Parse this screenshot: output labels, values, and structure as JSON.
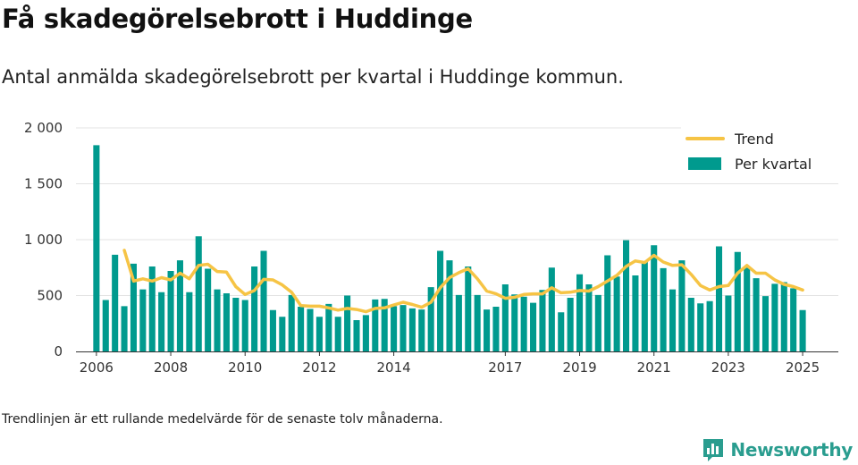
{
  "title": "Få skadegörelsebrott i Huddinge",
  "subtitle": "Antal anmälda skadegörelsebrott per kvartal i Huddinge kommun.",
  "footnote": "Trendlinjen är ett rullande medelvärde för de senaste tolv månaderna.",
  "brand": {
    "name": "Newsworthy",
    "color": "#2a9d8f",
    "logo_icon": "bar-chart-speech-bubble-icon"
  },
  "colors": {
    "bars": "#009a8e",
    "trend": "#f6c445",
    "grid": "#e3e3e3",
    "axis": "#333333"
  },
  "chart_data": {
    "type": "bar",
    "title": "",
    "xlabel": "",
    "ylabel": "",
    "ylim": [
      0,
      2000
    ],
    "yticks": [
      0,
      500,
      1000,
      1500,
      2000
    ],
    "ytick_labels": [
      "0",
      "500",
      "1 000",
      "1 500",
      "2 000"
    ],
    "xlim": [
      2005.45,
      2025.96
    ],
    "xticks": [
      2006,
      2008,
      2010,
      2012,
      2014,
      2017,
      2019,
      2021,
      2023,
      2025
    ],
    "xtick_labels": [
      "2006",
      "2008",
      "2010",
      "2012",
      "2014",
      "2017",
      "2019",
      "2021",
      "2023",
      "2025"
    ],
    "grid": true,
    "legend": {
      "position": "top-right",
      "entries": [
        {
          "label": "Trend",
          "kind": "line"
        },
        {
          "label": "Per kvartal",
          "kind": "bar"
        }
      ]
    },
    "series": [
      {
        "name": "Per kvartal",
        "type": "bar",
        "x": [
          2006.0,
          2006.25,
          2006.5,
          2006.75,
          2007.0,
          2007.25,
          2007.5,
          2007.75,
          2008.0,
          2008.25,
          2008.5,
          2008.75,
          2009.0,
          2009.25,
          2009.5,
          2009.75,
          2010.0,
          2010.25,
          2010.5,
          2010.75,
          2011.0,
          2011.25,
          2011.5,
          2011.75,
          2012.0,
          2012.25,
          2012.5,
          2012.75,
          2013.0,
          2013.25,
          2013.5,
          2013.75,
          2014.0,
          2014.25,
          2014.5,
          2014.75,
          2015.0,
          2015.25,
          2015.5,
          2015.75,
          2016.0,
          2016.25,
          2016.5,
          2016.75,
          2017.0,
          2017.25,
          2017.5,
          2017.75,
          2018.0,
          2018.25,
          2018.5,
          2018.75,
          2019.0,
          2019.25,
          2019.5,
          2019.75,
          2020.0,
          2020.25,
          2020.5,
          2020.75,
          2021.0,
          2021.25,
          2021.5,
          2021.75,
          2022.0,
          2022.25,
          2022.5,
          2022.75,
          2023.0,
          2023.25,
          2023.5,
          2023.75,
          2024.0,
          2024.25,
          2024.5,
          2024.75,
          2025.0
        ],
        "values": [
          1845,
          460,
          865,
          405,
          785,
          555,
          760,
          530,
          720,
          815,
          530,
          1030,
          740,
          555,
          520,
          480,
          460,
          760,
          900,
          370,
          310,
          505,
          400,
          380,
          310,
          425,
          310,
          500,
          280,
          325,
          465,
          470,
          405,
          415,
          385,
          375,
          575,
          900,
          815,
          505,
          760,
          505,
          375,
          400,
          600,
          510,
          490,
          435,
          550,
          750,
          350,
          480,
          690,
          600,
          505,
          860,
          670,
          995,
          680,
          800,
          950,
          745,
          555,
          815,
          480,
          430,
          450,
          940,
          500,
          890,
          760,
          655,
          495,
          605,
          620,
          565,
          370
        ]
      },
      {
        "name": "Trend",
        "type": "line",
        "x": [
          2006.75,
          2007.0,
          2007.25,
          2007.5,
          2007.75,
          2008.0,
          2008.25,
          2008.5,
          2008.75,
          2009.0,
          2009.25,
          2009.5,
          2009.75,
          2010.0,
          2010.25,
          2010.5,
          2010.75,
          2011.0,
          2011.25,
          2011.5,
          2011.75,
          2012.0,
          2012.25,
          2012.5,
          2012.75,
          2013.0,
          2013.25,
          2013.5,
          2013.75,
          2014.0,
          2014.25,
          2014.5,
          2014.75,
          2015.0,
          2015.25,
          2015.5,
          2015.75,
          2016.0,
          2016.25,
          2016.5,
          2016.75,
          2017.0,
          2017.25,
          2017.5,
          2017.75,
          2018.0,
          2018.25,
          2018.5,
          2018.75,
          2019.0,
          2019.25,
          2019.5,
          2019.75,
          2020.0,
          2020.25,
          2020.5,
          2020.75,
          2021.0,
          2021.25,
          2021.5,
          2021.75,
          2022.0,
          2022.25,
          2022.5,
          2022.75,
          2023.0,
          2023.25,
          2023.5,
          2023.75,
          2024.0,
          2024.25,
          2024.5,
          2024.75,
          2025.0
        ],
        "values": [
          905,
          630,
          650,
          630,
          660,
          640,
          700,
          650,
          770,
          780,
          715,
          710,
          580,
          510,
          545,
          645,
          640,
          595,
          530,
          410,
          405,
          405,
          390,
          370,
          385,
          375,
          355,
          385,
          390,
          415,
          440,
          420,
          395,
          440,
          570,
          660,
          705,
          740,
          650,
          540,
          515,
          475,
          485,
          510,
          515,
          515,
          570,
          525,
          530,
          545,
          540,
          580,
          630,
          680,
          760,
          810,
          795,
          860,
          800,
          770,
          775,
          690,
          590,
          550,
          580,
          590,
          700,
          770,
          700,
          700,
          640,
          600,
          580,
          550
        ]
      }
    ]
  }
}
